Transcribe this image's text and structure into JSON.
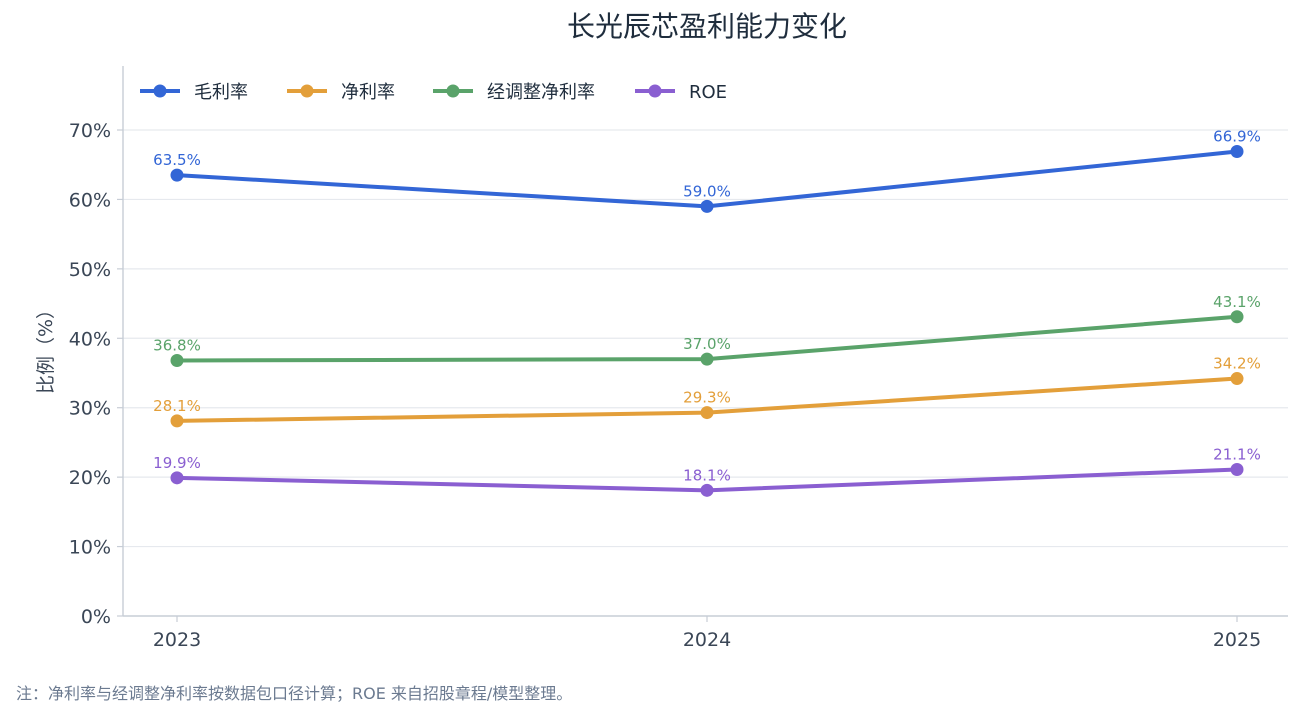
{
  "chart_data": {
    "type": "line",
    "title": "长光辰芯盈利能力变化",
    "xlabel": "",
    "ylabel": "比例（%）",
    "categories": [
      "2023",
      "2024",
      "2025"
    ],
    "ylim": [
      0,
      80
    ],
    "yticks": [
      0,
      10,
      20,
      30,
      40,
      50,
      60,
      70
    ],
    "ytick_labels": [
      "0%",
      "10%",
      "20%",
      "30%",
      "40%",
      "50%",
      "60%",
      "70%"
    ],
    "grid": "horizontal",
    "legend_position": "top-left",
    "series": [
      {
        "name": "毛利率",
        "values": [
          63.5,
          59.0,
          66.9
        ],
        "labels": [
          "63.5%",
          "59.0%",
          "66.9%"
        ],
        "color": "#3366d6"
      },
      {
        "name": "净利率",
        "values": [
          28.1,
          29.3,
          34.2
        ],
        "labels": [
          "28.1%",
          "29.3%",
          "34.2%"
        ],
        "color": "#e39f3a"
      },
      {
        "name": "经调整净利率",
        "values": [
          36.8,
          37.0,
          43.1
        ],
        "labels": [
          "36.8%",
          "37.0%",
          "43.1%"
        ],
        "color": "#5aa36a"
      },
      {
        "name": "ROE",
        "values": [
          19.9,
          18.1,
          21.1
        ],
        "labels": [
          "19.9%",
          "18.1%",
          "21.1%"
        ],
        "color": "#8a5fd1"
      }
    ]
  },
  "note": "注：净利率与经调整净利率按数据包口径计算；ROE 来自招股章程/模型整理。"
}
